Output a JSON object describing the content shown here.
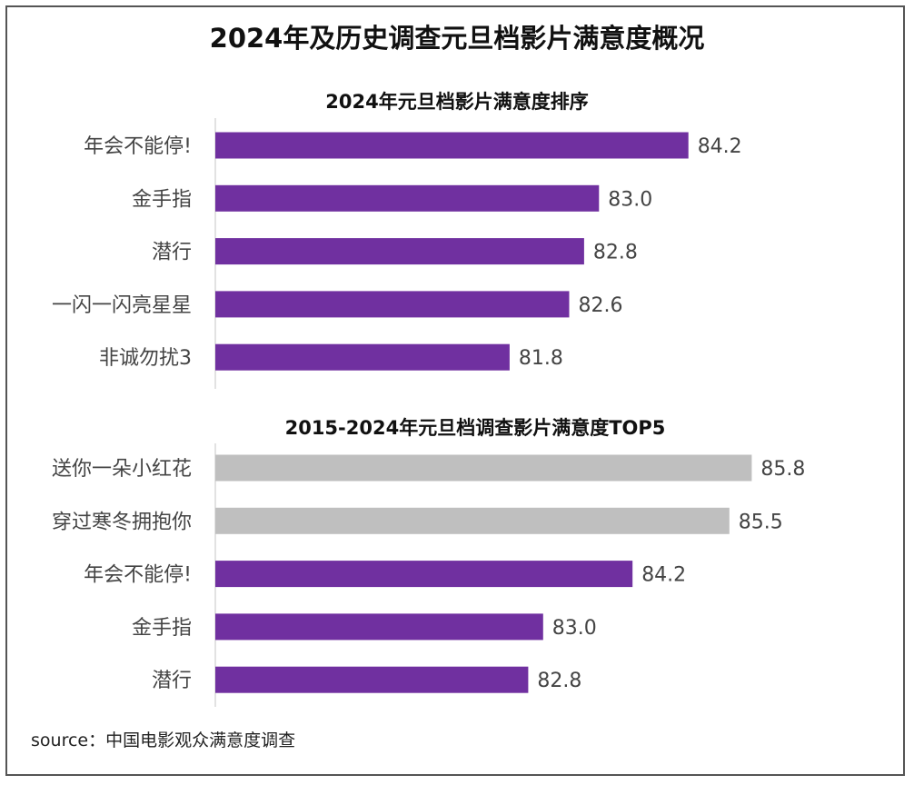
{
  "title": "2024年及历史调查元旦档影片满意度概况",
  "source": "source：中国电影观众满意度调查",
  "colors": {
    "highlight": "#7030A0",
    "muted": "#BFBFBF"
  },
  "chart_data": [
    {
      "type": "bar",
      "orientation": "horizontal",
      "title": "2024年元旦档影片满意度排序",
      "categories": [
        "年会不能停!",
        "金手指",
        "潜行",
        "一闪一闪亮星星",
        "非诚勿扰3"
      ],
      "values": [
        84.2,
        83.0,
        82.8,
        82.6,
        81.8
      ],
      "highlight": [
        true,
        true,
        true,
        true,
        true
      ],
      "grid": false
    },
    {
      "type": "bar",
      "orientation": "horizontal",
      "title": "2015-2024年元旦档调查影片满意度TOP5",
      "categories": [
        "送你一朵小红花",
        "穿过寒冬拥抱你",
        "年会不能停!",
        "金手指",
        "潜行"
      ],
      "values": [
        85.8,
        85.5,
        84.2,
        83.0,
        82.8
      ],
      "highlight": [
        false,
        false,
        true,
        true,
        true
      ],
      "grid": false
    }
  ]
}
